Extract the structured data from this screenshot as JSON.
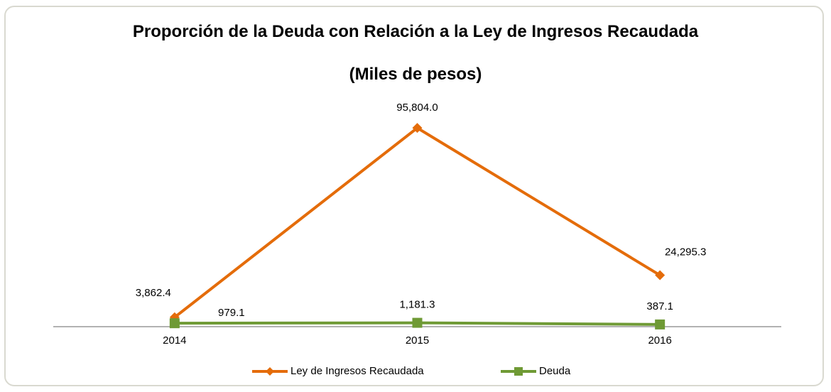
{
  "chart_data": {
    "type": "line",
    "title": "Proporción de la Deuda con Relación a la Ley de Ingresos Recaudada",
    "subtitle": "(Miles de pesos)",
    "categories": [
      "2014",
      "2015",
      "2016"
    ],
    "series": [
      {
        "name": "Ley de Ingresos Recaudada",
        "color": "#e46c0a",
        "marker": "diamond",
        "values": [
          3862.4,
          95804.0,
          24295.3
        ],
        "value_labels": [
          "3,862.4",
          "95,804.0",
          "24,295.3"
        ]
      },
      {
        "name": "Deuda",
        "color": "#6f9a35",
        "marker": "square",
        "values": [
          979.1,
          1181.3,
          387.1
        ],
        "value_labels": [
          "979.1",
          "1,181.3",
          "387.1"
        ]
      }
    ],
    "ylim": [
      0,
      100000
    ],
    "legend": "bottom"
  }
}
